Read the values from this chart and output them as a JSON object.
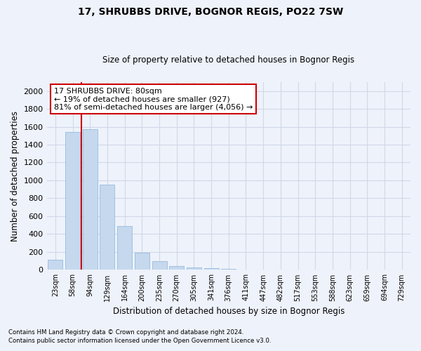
{
  "title": "17, SHRUBBS DRIVE, BOGNOR REGIS, PO22 7SW",
  "subtitle": "Size of property relative to detached houses in Bognor Regis",
  "xlabel": "Distribution of detached houses by size in Bognor Regis",
  "ylabel": "Number of detached properties",
  "bar_color": "#c5d8ee",
  "bar_edge_color": "#8ab4d8",
  "categories": [
    "23sqm",
    "58sqm",
    "94sqm",
    "129sqm",
    "164sqm",
    "200sqm",
    "235sqm",
    "270sqm",
    "305sqm",
    "341sqm",
    "376sqm",
    "411sqm",
    "447sqm",
    "482sqm",
    "517sqm",
    "553sqm",
    "588sqm",
    "623sqm",
    "659sqm",
    "694sqm",
    "729sqm"
  ],
  "values": [
    110,
    1540,
    1570,
    950,
    490,
    190,
    95,
    45,
    30,
    20,
    15,
    5,
    0,
    0,
    0,
    0,
    0,
    0,
    0,
    0,
    0
  ],
  "ylim": [
    0,
    2100
  ],
  "yticks": [
    0,
    200,
    400,
    600,
    800,
    1000,
    1200,
    1400,
    1600,
    1800,
    2000
  ],
  "annotation_text": "17 SHRUBBS DRIVE: 80sqm\n← 19% of detached houses are smaller (927)\n81% of semi-detached houses are larger (4,056) →",
  "annotation_box_color": "#ffffff",
  "annotation_box_edge_color": "#cc0000",
  "footer_line1": "Contains HM Land Registry data © Crown copyright and database right 2024.",
  "footer_line2": "Contains public sector information licensed under the Open Government Licence v3.0.",
  "red_line_color": "#cc0000",
  "grid_color": "#d0d8e8",
  "background_color": "#eef2fa"
}
